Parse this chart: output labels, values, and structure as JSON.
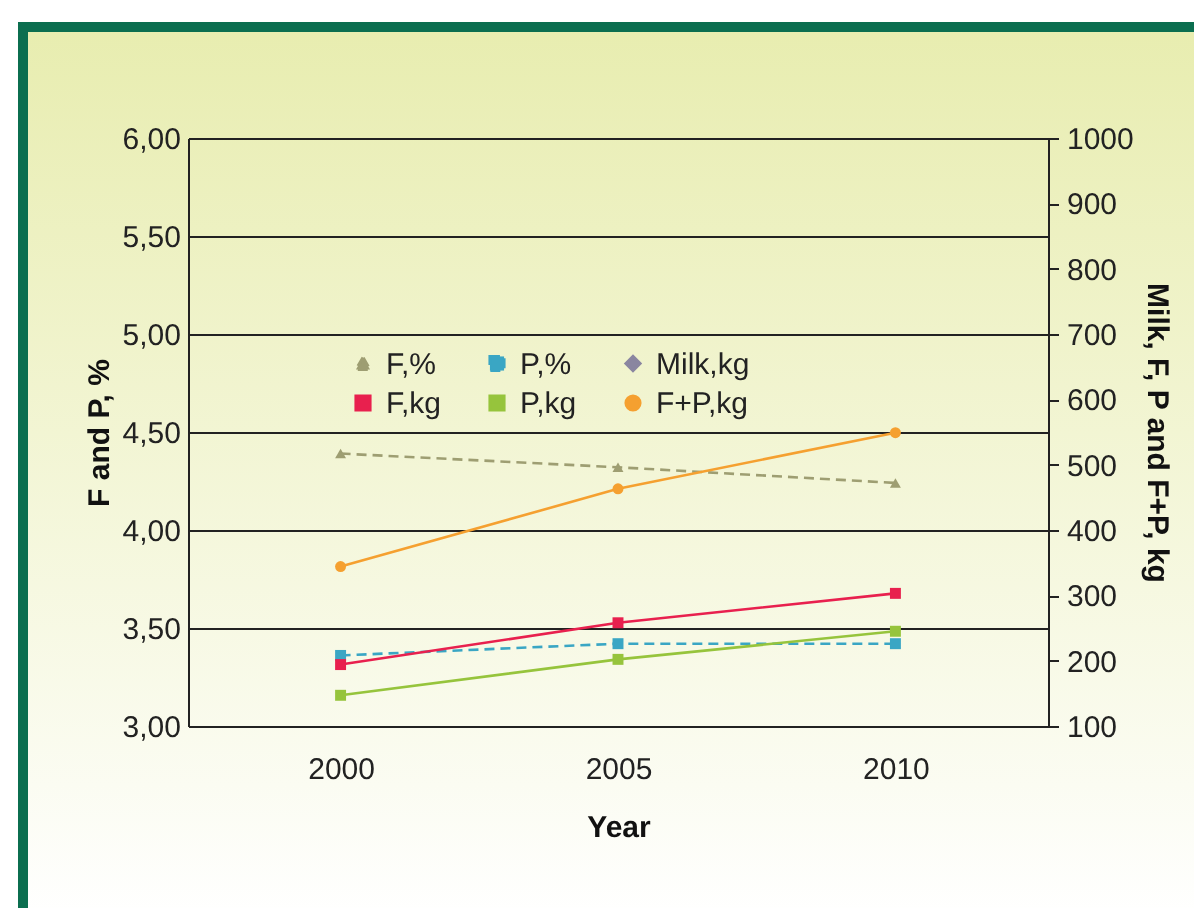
{
  "chart_data": {
    "type": "line",
    "xlabel": "Year",
    "ylabel": "F and P, %",
    "y2label": "Milk, F, P and F+P, kg",
    "categories": [
      "2000",
      "2005",
      "2010"
    ],
    "series": [
      {
        "name": "F,%",
        "color": "#9e9e72",
        "values": [
          4.39,
          4.32,
          4.24
        ],
        "marker": "triangle",
        "line_style": "dashed"
      },
      {
        "name": "P,%",
        "color": "#3aa6c4",
        "values": [
          3.36,
          3.42,
          3.42
        ],
        "marker": "square",
        "line_style": "dashed"
      },
      {
        "name": "Milk,kg",
        "color": "#8a86a0",
        "values": [
          null,
          null,
          null
        ],
        "marker": "diamond",
        "line_style": "solid",
        "axis": "y2"
      },
      {
        "name": "F,kg",
        "color": "#e8204e",
        "values": [
          194,
          258,
          303
        ],
        "marker": "square",
        "line_style": "solid",
        "axis": "y2"
      },
      {
        "name": "P,kg",
        "color": "#96c43c",
        "values": [
          147,
          202,
          245
        ],
        "marker": "square",
        "line_style": "solid",
        "axis": "y2"
      },
      {
        "name": "F+P,kg",
        "color": "#f5a030",
        "values": [
          344,
          463,
          549
        ],
        "marker": "circle",
        "line_style": "solid",
        "axis": "y2"
      }
    ],
    "ylim": [
      3,
      6
    ],
    "yticks": [
      {
        "value": 3,
        "label": "3,00"
      },
      {
        "value": 3.5,
        "label": "3,50"
      },
      {
        "value": 4,
        "label": "4,00"
      },
      {
        "value": 4.5,
        "label": "4,50"
      },
      {
        "value": 5,
        "label": "5,00"
      },
      {
        "value": 5.5,
        "label": "5,50"
      },
      {
        "value": 6,
        "label": "6,00"
      }
    ],
    "y2lim": [
      100,
      1000
    ],
    "y2ticks": [
      100,
      200,
      300,
      400,
      500,
      600,
      700,
      800,
      900,
      1000
    ],
    "grid": "y",
    "legend": "top"
  }
}
